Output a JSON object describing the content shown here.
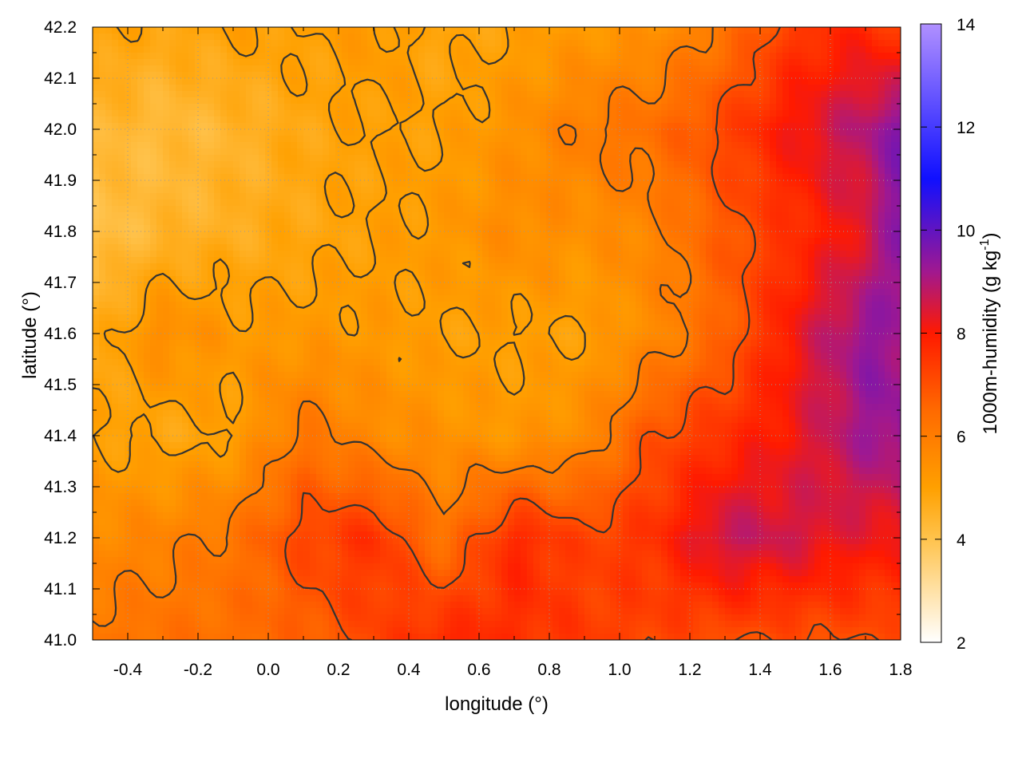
{
  "chart_data": {
    "type": "heatmap",
    "title": "",
    "xlabel": "longitude (°)",
    "ylabel": "latitude (°)",
    "colorbar_label_main": "1000m-humidity (g kg",
    "colorbar_label_exp": "-1",
    "colorbar_label_close": ")",
    "xlim": [
      -0.5,
      1.8
    ],
    "ylim": [
      41.0,
      42.2
    ],
    "x_ticks": [
      {
        "value": -0.4,
        "label": "-0.4"
      },
      {
        "value": -0.2,
        "label": "-0.2"
      },
      {
        "value": 0.0,
        "label": "0.0"
      },
      {
        "value": 0.2,
        "label": "0.2"
      },
      {
        "value": 0.4,
        "label": "0.4"
      },
      {
        "value": 0.6,
        "label": "0.6"
      },
      {
        "value": 0.8,
        "label": "0.8"
      },
      {
        "value": 1.0,
        "label": "1.0"
      },
      {
        "value": 1.2,
        "label": "1.2"
      },
      {
        "value": 1.4,
        "label": "1.4"
      },
      {
        "value": 1.6,
        "label": "1.6"
      },
      {
        "value": 1.8,
        "label": "1.8"
      }
    ],
    "y_ticks": [
      {
        "value": 41.0,
        "label": "41.0"
      },
      {
        "value": 41.1,
        "label": "41.1"
      },
      {
        "value": 41.2,
        "label": "41.2"
      },
      {
        "value": 41.3,
        "label": "41.3"
      },
      {
        "value": 41.4,
        "label": "41.4"
      },
      {
        "value": 41.5,
        "label": "41.5"
      },
      {
        "value": 41.6,
        "label": "41.6"
      },
      {
        "value": 41.7,
        "label": "41.7"
      },
      {
        "value": 41.8,
        "label": "41.8"
      },
      {
        "value": 41.9,
        "label": "41.9"
      },
      {
        "value": 42.0,
        "label": "42.0"
      },
      {
        "value": 42.1,
        "label": "42.1"
      },
      {
        "value": 42.2,
        "label": "42.2"
      }
    ],
    "colorbar": {
      "range": [
        2,
        14
      ],
      "ticks": [
        {
          "value": 2,
          "label": "2"
        },
        {
          "value": 4,
          "label": "4"
        },
        {
          "value": 6,
          "label": "6"
        },
        {
          "value": 8,
          "label": "8"
        },
        {
          "value": 10,
          "label": "10"
        },
        {
          "value": 12,
          "label": "12"
        },
        {
          "value": 14,
          "label": "14"
        }
      ],
      "stops": [
        {
          "value": 2,
          "color": "#ffffff"
        },
        {
          "value": 4,
          "color": "#ffc34d"
        },
        {
          "value": 5,
          "color": "#ffa000"
        },
        {
          "value": 6.5,
          "color": "#ff6a00"
        },
        {
          "value": 8,
          "color": "#ff1a00"
        },
        {
          "value": 9.2,
          "color": "#a01890"
        },
        {
          "value": 11,
          "color": "#1010ff"
        },
        {
          "value": 14,
          "color": "#b090ff"
        }
      ]
    },
    "grid": true,
    "contour_color": "#333333",
    "humidity_field": {
      "lon": [
        -0.5,
        -0.3,
        -0.1,
        0.1,
        0.3,
        0.5,
        0.7,
        0.9,
        1.1,
        1.3,
        1.5,
        1.7,
        1.8
      ],
      "lat": [
        41.0,
        41.2,
        41.4,
        41.6,
        41.8,
        42.0,
        42.2
      ],
      "values": [
        [
          6.2,
          6.3,
          6.4,
          6.6,
          7.2,
          7.8,
          7.6,
          7.4,
          7.2,
          7.0,
          7.0,
          7.0,
          7.0
        ],
        [
          5.6,
          5.8,
          6.2,
          7.2,
          7.6,
          6.2,
          7.8,
          7.2,
          7.6,
          8.8,
          8.6,
          8.2,
          8.2
        ],
        [
          5.0,
          4.8,
          5.0,
          6.2,
          5.6,
          5.4,
          5.2,
          5.6,
          7.0,
          7.6,
          8.2,
          9.2,
          9.4
        ],
        [
          4.6,
          5.6,
          5.2,
          5.2,
          5.2,
          5.0,
          5.0,
          5.0,
          5.6,
          6.6,
          8.2,
          9.4,
          9.2
        ],
        [
          4.0,
          4.4,
          4.6,
          4.8,
          5.0,
          5.2,
          5.6,
          5.4,
          5.8,
          6.8,
          7.6,
          8.4,
          9.6
        ],
        [
          4.4,
          4.2,
          4.4,
          4.8,
          5.0,
          5.0,
          5.4,
          6.0,
          6.4,
          7.2,
          8.2,
          9.0,
          9.6
        ],
        [
          5.0,
          4.8,
          5.0,
          5.0,
          5.2,
          4.8,
          5.0,
          5.2,
          5.4,
          6.2,
          7.4,
          7.8,
          7.2
        ]
      ]
    },
    "contour_levels": [
      5,
      6,
      7
    ]
  }
}
